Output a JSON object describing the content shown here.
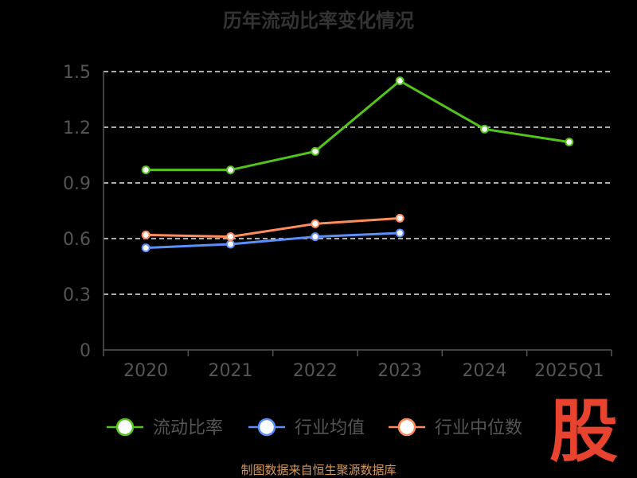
{
  "chart_data": {
    "type": "line",
    "title": "历年流动比率变化情况",
    "categories": [
      "2020",
      "2021",
      "2022",
      "2023",
      "2024",
      "2025Q1"
    ],
    "ylim": [
      0,
      1.5
    ],
    "yticks": [
      "0",
      "0.3",
      "0.6",
      "0.9",
      "1.2",
      "1.5"
    ],
    "grid": true,
    "legend_position": "bottom",
    "series": [
      {
        "name": "流动比率",
        "color": "#52c41a",
        "values": [
          0.97,
          0.97,
          1.07,
          1.45,
          1.19,
          1.12
        ]
      },
      {
        "name": "行业均值",
        "color": "#5b8ff9",
        "values": [
          0.55,
          0.57,
          0.61,
          0.63,
          null,
          null
        ]
      },
      {
        "name": "行业中位数",
        "color": "#ff8c5a",
        "values": [
          0.62,
          0.61,
          0.68,
          0.71,
          null,
          null
        ]
      }
    ]
  },
  "source_text": "制图数据来自恒生聚源数据库",
  "watermark_text": "股"
}
